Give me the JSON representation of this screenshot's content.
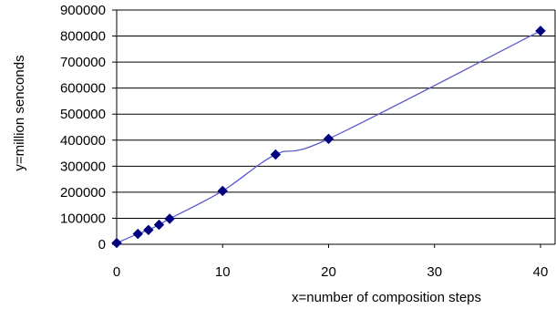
{
  "chart_data": {
    "type": "scatter",
    "title": "",
    "xlabel": "x=number of composition steps",
    "ylabel": "y=million senconds",
    "xlim": [
      0,
      40
    ],
    "ylim": [
      0,
      900000
    ],
    "xticks": [
      0,
      10,
      20,
      30,
      40
    ],
    "yticks": [
      0,
      100000,
      200000,
      300000,
      400000,
      500000,
      600000,
      700000,
      800000,
      900000
    ],
    "grid": "horizontal",
    "legend": "none",
    "series": [
      {
        "x": [
          0,
          2,
          3,
          4,
          5,
          10,
          15,
          20,
          40
        ],
        "y": [
          5000,
          40000,
          55000,
          75000,
          98000,
          205000,
          345000,
          405000,
          820000
        ],
        "marker": "diamond",
        "marker_color": "#00007f",
        "line_color": "#5a5ad2",
        "line_style": "smooth"
      }
    ]
  }
}
